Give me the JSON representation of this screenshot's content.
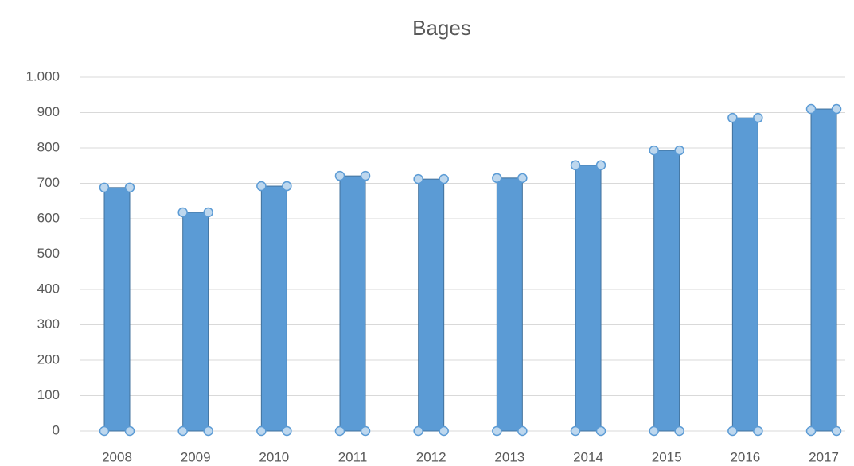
{
  "chart_data": {
    "type": "bar",
    "title": "Bages",
    "categories": [
      "2008",
      "2009",
      "2010",
      "2011",
      "2012",
      "2013",
      "2014",
      "2015",
      "2016",
      "2017"
    ],
    "values": [
      688,
      618,
      692,
      721,
      712,
      715,
      751,
      793,
      885,
      910
    ],
    "color": "#5b9bd5",
    "ylim": [
      0,
      1000
    ],
    "yticks": [
      0,
      100,
      200,
      300,
      400,
      500,
      600,
      700,
      800,
      900,
      {
        "value": 1000,
        "label": "1.000"
      }
    ],
    "grid": true
  }
}
